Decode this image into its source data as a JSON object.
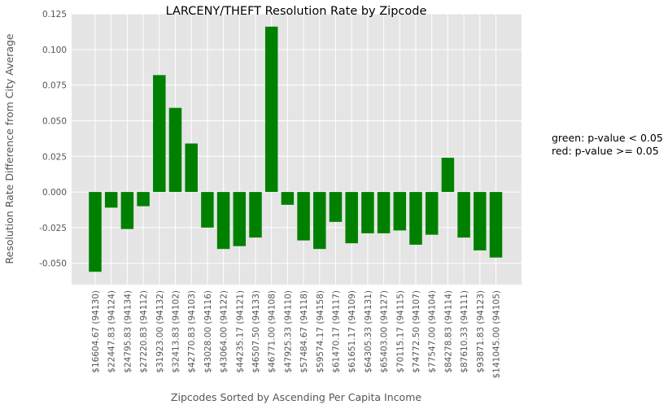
{
  "chart_data": {
    "type": "bar",
    "title": "LARCENY/THEFT Resolution Rate by Zipcode",
    "xlabel": "Zipcodes Sorted by Ascending Per Capita Income",
    "ylabel": "Resolution Rate Difference from City Average",
    "ylim": [
      -0.065,
      0.125
    ],
    "yticks": [
      "-0.050",
      "-0.025",
      "0.000",
      "0.025",
      "0.050",
      "0.075",
      "0.100",
      "0.125"
    ],
    "grid": true,
    "categories": [
      "$16604.67 (94130)",
      "$22447.83 (94124)",
      "$24795.83 (94134)",
      "$27220.83 (94112)",
      "$31923.00 (94132)",
      "$32413.83 (94102)",
      "$42770.83 (94103)",
      "$43028.00 (94116)",
      "$43064.00 (94122)",
      "$44235.17 (94121)",
      "$46507.50 (94133)",
      "$46771.00 (94108)",
      "$47925.33 (94110)",
      "$57484.67 (94118)",
      "$59574.17 (94158)",
      "$61470.17 (94117)",
      "$61651.17 (94109)",
      "$64305.33 (94131)",
      "$65403.00 (94127)",
      "$70115.17 (94115)",
      "$74772.50 (94107)",
      "$77547.00 (94104)",
      "$84278.83 (94114)",
      "$87610.33 (94111)",
      "$93871.83 (94123)",
      "$141045.00 (94105)"
    ],
    "values": [
      -0.056,
      -0.011,
      -0.026,
      -0.01,
      0.082,
      0.059,
      0.034,
      -0.025,
      -0.04,
      -0.038,
      -0.032,
      0.116,
      -0.009,
      -0.034,
      -0.04,
      -0.021,
      -0.036,
      -0.029,
      -0.029,
      -0.027,
      -0.037,
      -0.03,
      0.024,
      -0.032,
      -0.041,
      -0.046
    ],
    "bar_color": "#008000"
  },
  "legend_note": {
    "line1": "green: p-value < 0.05",
    "line2": "red: p-value >= 0.05"
  }
}
